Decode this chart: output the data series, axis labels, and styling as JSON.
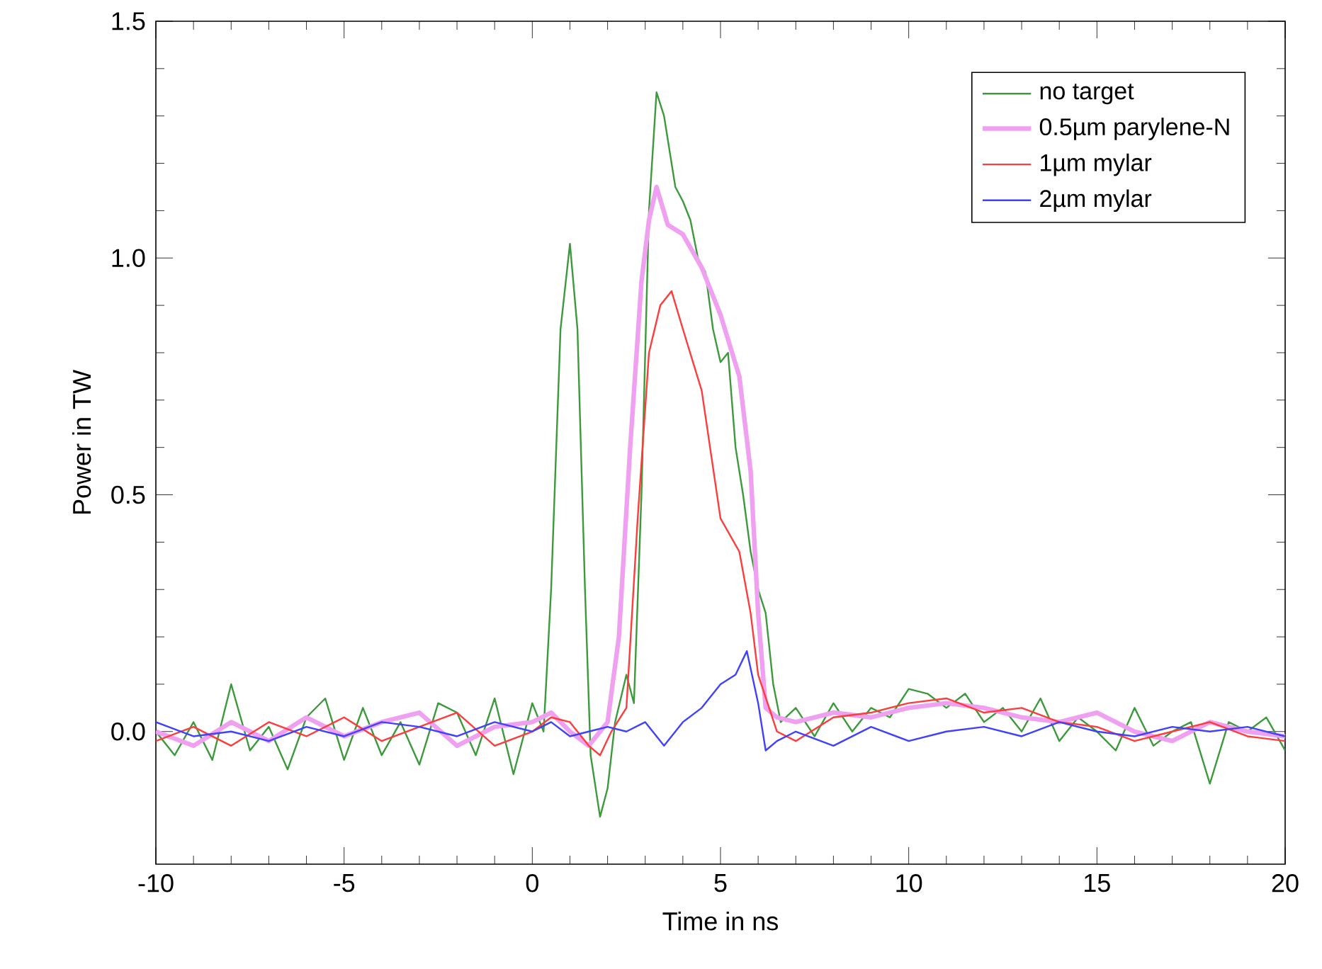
{
  "chart_data": {
    "type": "line",
    "xlabel": "Time in ns",
    "ylabel": "Power in TW",
    "xlim": [
      -10,
      20
    ],
    "ylim": [
      -0.28,
      1.5
    ],
    "xticks": [
      -10,
      -5,
      0,
      5,
      10,
      15,
      20
    ],
    "yticks": [
      {
        "value": 0,
        "label": "0.0"
      },
      {
        "value": 0.5,
        "label": "0.5"
      },
      {
        "value": 1,
        "label": "1.0"
      },
      {
        "value": 1.5,
        "label": "1.5"
      }
    ],
    "grid": false,
    "legend": "top right",
    "marker": "none",
    "line_style": "solid",
    "series": [
      {
        "name": "no target",
        "color": "#3c9a3c",
        "x": [
          -10,
          -9.5,
          -9,
          -8.5,
          -8,
          -7.5,
          -7,
          -6.5,
          -6,
          -5.5,
          -5,
          -4.5,
          -4,
          -3.5,
          -3,
          -2.5,
          -2,
          -1.5,
          -1,
          -0.5,
          0,
          0.3,
          0.5,
          0.75,
          1.0,
          1.2,
          1.4,
          1.55,
          1.8,
          2.0,
          2.2,
          2.5,
          2.7,
          2.9,
          3.1,
          3.3,
          3.5,
          3.8,
          4.0,
          4.2,
          4.4,
          4.6,
          4.8,
          5.0,
          5.2,
          5.4,
          5.6,
          5.8,
          6.0,
          6.2,
          6.4,
          6.6,
          7,
          7.5,
          8,
          8.5,
          9,
          9.5,
          10,
          10.5,
          11,
          11.5,
          12,
          12.5,
          13,
          13.5,
          14,
          14.5,
          15,
          15.5,
          16,
          16.5,
          17,
          17.5,
          18,
          18.5,
          19,
          19.5,
          20
        ],
        "values": [
          0.0,
          -0.05,
          0.02,
          -0.06,
          0.1,
          -0.04,
          0.01,
          -0.08,
          0.03,
          0.07,
          -0.06,
          0.05,
          -0.05,
          0.02,
          -0.07,
          0.06,
          0.04,
          -0.05,
          0.07,
          -0.09,
          0.06,
          0.0,
          0.3,
          0.85,
          1.03,
          0.85,
          0.3,
          -0.05,
          -0.18,
          -0.12,
          0.02,
          0.12,
          0.06,
          0.5,
          1.1,
          1.35,
          1.3,
          1.15,
          1.12,
          1.08,
          1.0,
          0.97,
          0.85,
          0.78,
          0.8,
          0.6,
          0.5,
          0.38,
          0.3,
          0.25,
          0.1,
          0.02,
          0.05,
          -0.01,
          0.06,
          0.0,
          0.05,
          0.03,
          0.09,
          0.08,
          0.05,
          0.08,
          0.02,
          0.05,
          0.0,
          0.07,
          -0.02,
          0.03,
          0.0,
          -0.04,
          0.05,
          -0.03,
          0.0,
          0.02,
          -0.11,
          0.02,
          0.0,
          0.03,
          -0.04
        ]
      },
      {
        "name": "0.5µm parylene-N",
        "color": "#f0a0f0",
        "x": [
          -10,
          -9,
          -8,
          -7,
          -6,
          -5,
          -4,
          -3,
          -2,
          -1,
          0,
          0.5,
          1,
          1.5,
          2,
          2.3,
          2.6,
          2.9,
          3.1,
          3.3,
          3.6,
          4.0,
          4.5,
          5.0,
          5.5,
          5.8,
          6.0,
          6.2,
          6.5,
          7,
          8,
          9,
          10,
          11,
          12,
          13,
          14,
          15,
          16,
          17,
          18,
          19,
          20
        ],
        "values": [
          0.0,
          -0.03,
          0.02,
          -0.02,
          0.03,
          -0.01,
          0.02,
          0.04,
          -0.03,
          0.01,
          0.02,
          0.04,
          0.0,
          -0.03,
          0.02,
          0.2,
          0.6,
          0.95,
          1.08,
          1.15,
          1.07,
          1.05,
          0.98,
          0.88,
          0.75,
          0.55,
          0.25,
          0.05,
          0.03,
          0.02,
          0.04,
          0.03,
          0.05,
          0.06,
          0.05,
          0.03,
          0.02,
          0.04,
          0.0,
          -0.02,
          0.02,
          0.0,
          -0.01
        ]
      },
      {
        "name": "1µm mylar",
        "color": "#ff3c3c",
        "x": [
          -10,
          -9,
          -8,
          -7,
          -6,
          -5,
          -4,
          -3,
          -2,
          -1,
          0,
          0.5,
          1,
          1.5,
          1.8,
          2.1,
          2.5,
          2.8,
          3.1,
          3.4,
          3.7,
          4.0,
          4.5,
          5.0,
          5.5,
          5.8,
          6.0,
          6.5,
          7,
          8,
          9,
          10,
          11,
          12,
          13,
          14,
          15,
          16,
          17,
          18,
          19,
          20
        ],
        "values": [
          -0.02,
          0.01,
          -0.03,
          0.02,
          -0.01,
          0.03,
          -0.02,
          0.01,
          0.04,
          -0.03,
          0.0,
          0.03,
          0.02,
          -0.03,
          -0.05,
          0.0,
          0.05,
          0.45,
          0.8,
          0.9,
          0.93,
          0.85,
          0.72,
          0.45,
          0.38,
          0.25,
          0.12,
          0.0,
          -0.02,
          0.03,
          0.04,
          0.06,
          0.07,
          0.04,
          0.05,
          0.02,
          0.01,
          -0.02,
          0.0,
          0.02,
          -0.01,
          -0.02
        ]
      },
      {
        "name": "2µm mylar",
        "color": "#4040ff",
        "x": [
          -10,
          -9,
          -8,
          -7,
          -6,
          -5,
          -4,
          -3,
          -2,
          -1,
          0,
          0.5,
          1,
          1.5,
          2,
          2.5,
          3,
          3.5,
          4,
          4.5,
          5.0,
          5.4,
          5.7,
          6.0,
          6.2,
          6.5,
          7,
          8,
          9,
          10,
          11,
          12,
          13,
          14,
          15,
          16,
          17,
          18,
          19,
          20
        ],
        "values": [
          0.02,
          -0.01,
          0.0,
          -0.02,
          0.01,
          -0.01,
          0.02,
          0.01,
          -0.01,
          0.02,
          0.0,
          0.02,
          -0.01,
          0.0,
          0.01,
          0.0,
          0.02,
          -0.03,
          0.02,
          0.05,
          0.1,
          0.12,
          0.17,
          0.06,
          -0.04,
          -0.02,
          0.0,
          -0.03,
          0.01,
          -0.02,
          0.0,
          0.01,
          -0.01,
          0.02,
          0.0,
          -0.01,
          0.01,
          0.0,
          0.01,
          -0.01
        ]
      }
    ]
  }
}
